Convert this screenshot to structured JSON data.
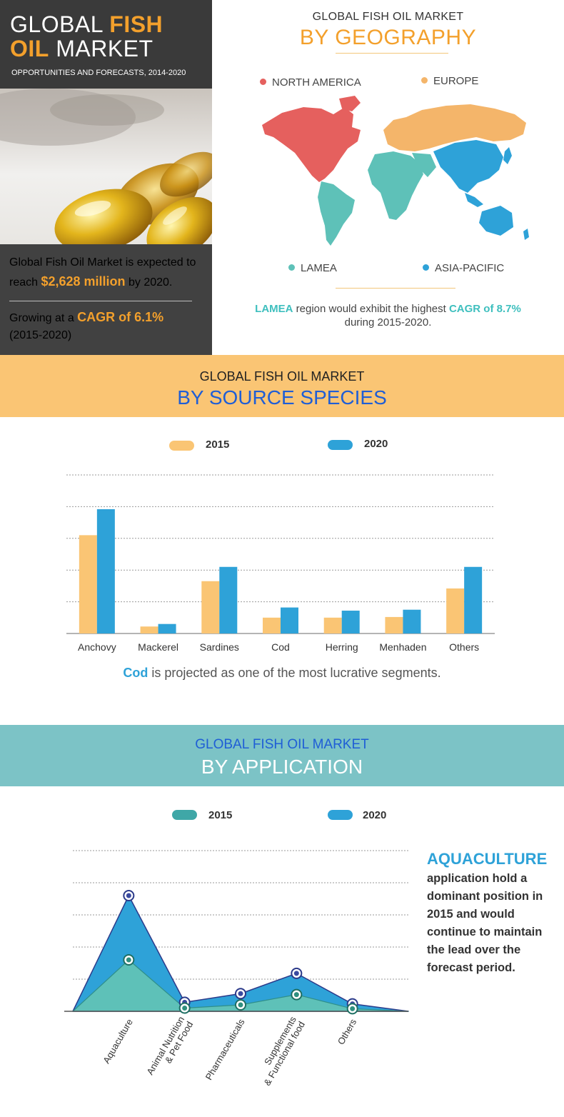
{
  "hero": {
    "title_a": "GLOBAL ",
    "title_b": "FISH",
    "title_c": "OIL",
    "title_d": " MARKET",
    "subtitle": "OPPORTUNITIES AND FORECASTS, 2014-2020",
    "line1": "Global Fish Oil Market is expected to",
    "line2_pre": "reach ",
    "line2_value": "$2,628 million",
    "line2_post": " by 2020.",
    "line3_pre": "Growing at a ",
    "line3_value": "CAGR of 6.1%",
    "line4": "(2015-2020)"
  },
  "geography": {
    "title1": "GLOBAL FISH OIL MARKET",
    "title2": "BY GEOGRAPHY",
    "regions": [
      {
        "name": "NORTH AMERICA",
        "color": "#e5605e"
      },
      {
        "name": "EUROPE",
        "color": "#f4b56a"
      },
      {
        "name": "LAMEA",
        "color": "#5ec1b8"
      },
      {
        "name": "ASIA-PACIFIC",
        "color": "#2ea2d8"
      }
    ],
    "note_region": "LAMEA",
    "note_mid": " region would exhibit the highest ",
    "note_cagr": "CAGR of 8.7%",
    "note_line2": "during 2015-2020."
  },
  "source": {
    "title1": "GLOBAL FISH OIL MARKET",
    "title2": "BY SOURCE SPECIES",
    "note_bold": "Cod",
    "note_rest": " is projected as one of the most lucrative segments."
  },
  "application": {
    "title1": "GLOBAL FISH OIL MARKET",
    "title2": "BY APPLICATION",
    "note_title": "AQUACULTURE",
    "note_text": "application hold a dominant position in 2015 and would continue to maintain the lead over the forecast period."
  },
  "chart_data": [
    {
      "type": "bar",
      "categories": [
        "Anchovy",
        "Mackerel",
        "Sardines",
        "Cod",
        "Herring",
        "Menhaden",
        "Others"
      ],
      "series": [
        {
          "name": "2015",
          "color": "#fac574",
          "values": [
            3.1,
            0.22,
            1.65,
            0.5,
            0.5,
            0.52,
            1.42
          ]
        },
        {
          "name": "2020",
          "color": "#2ea2d8",
          "values": [
            3.92,
            0.3,
            2.1,
            0.82,
            0.72,
            0.75,
            2.1
          ]
        }
      ],
      "ylim": [
        0,
        5
      ],
      "grid": true,
      "legend": "top"
    },
    {
      "type": "area",
      "categories": [
        "Aquaculture",
        "Animal Nutrition & Pet Food",
        "Pharmaceuticals",
        "Supplements & Functional food",
        "Others"
      ],
      "series": [
        {
          "name": "2015",
          "color": "#3fa7a7",
          "values": [
            1.6,
            0.1,
            0.2,
            0.52,
            0.08
          ]
        },
        {
          "name": "2020",
          "color": "#2ea2d8",
          "values": [
            3.6,
            0.28,
            0.55,
            1.18,
            0.23
          ]
        }
      ],
      "ylim": [
        0,
        5
      ],
      "grid": true,
      "legend": "top"
    }
  ]
}
